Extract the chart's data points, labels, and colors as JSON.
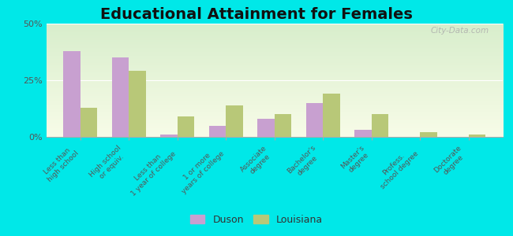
{
  "title": "Educational Attainment for Females",
  "categories": [
    "Less than\nhigh school",
    "High school\nor equiv.",
    "Less than\n1 year of college",
    "1 or more\nyears of college",
    "Associate\ndegree",
    "Bachelor's\ndegree",
    "Master's\ndegree",
    "Profess.\nschool degree",
    "Doctorate\ndegree"
  ],
  "duson_values": [
    38,
    35,
    1,
    5,
    8,
    15,
    3,
    0,
    0
  ],
  "louisiana_values": [
    13,
    29,
    9,
    14,
    10,
    19,
    10,
    2,
    1
  ],
  "duson_color": "#c8a0d0",
  "louisiana_color": "#b8c878",
  "ylim": [
    0,
    50
  ],
  "yticks": [
    0,
    25,
    50
  ],
  "ytick_labels": [
    "0%",
    "25%",
    "50%"
  ],
  "outer_color": "#00e8e8",
  "bar_width": 0.35,
  "title_fontsize": 14,
  "tick_fontsize": 6.5,
  "legend_fontsize": 9,
  "watermark": "City-Data.com"
}
